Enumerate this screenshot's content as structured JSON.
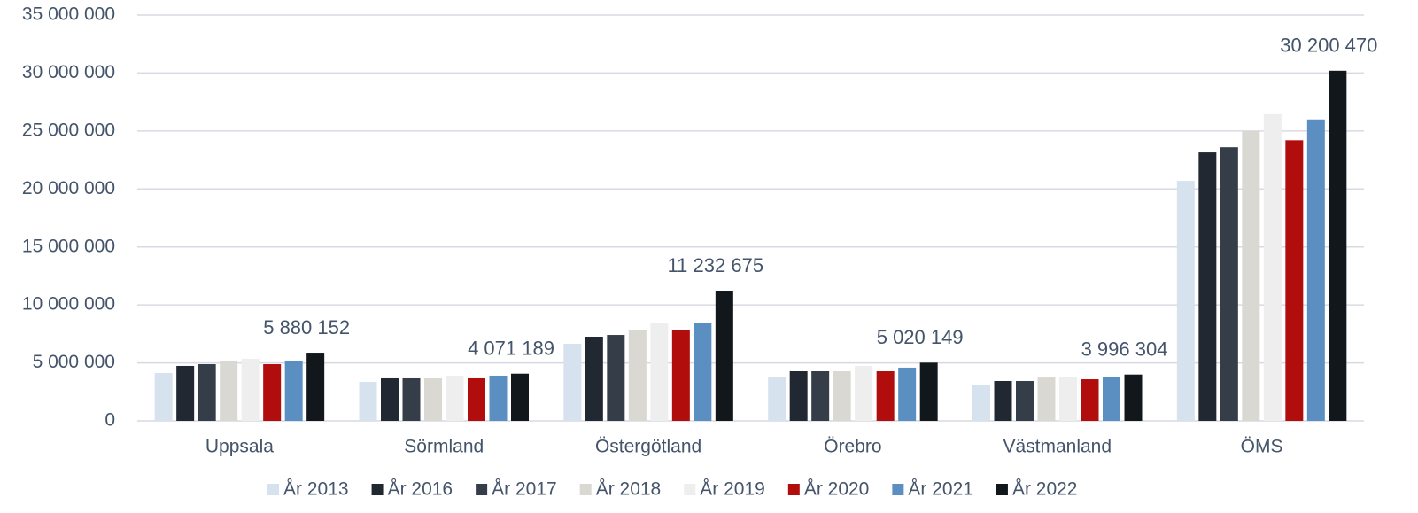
{
  "chart_data": {
    "type": "bar",
    "categories": [
      "Uppsala",
      "Sörmland",
      "Östergötland",
      "Örebro",
      "Västmanland",
      "ÖMS"
    ],
    "series": [
      {
        "name": "År 2013",
        "color": "#d6e3ef",
        "values": [
          4130000,
          3360000,
          6650000,
          3820000,
          3130000,
          20700000
        ]
      },
      {
        "name": "År 2016",
        "color": "#222831",
        "values": [
          4740000,
          3670000,
          7260000,
          4280000,
          3440000,
          23150000
        ]
      },
      {
        "name": "År 2017",
        "color": "#353e48",
        "values": [
          4890000,
          3670000,
          7410000,
          4280000,
          3440000,
          23600000
        ]
      },
      {
        "name": "År 2018",
        "color": "#d9d8d3",
        "values": [
          5200000,
          3670000,
          7870000,
          4280000,
          3740000,
          25000000
        ]
      },
      {
        "name": "År 2019",
        "color": "#eeeeee",
        "values": [
          5350000,
          3900000,
          8480000,
          4740000,
          3820000,
          26450000
        ]
      },
      {
        "name": "År 2020",
        "color": "#b10d0d",
        "values": [
          4890000,
          3670000,
          7870000,
          4280000,
          3590000,
          24200000
        ]
      },
      {
        "name": "År 2021",
        "color": "#5b8fc2",
        "values": [
          5200000,
          3900000,
          8480000,
          4590000,
          3820000,
          26000000
        ]
      },
      {
        "name": "År 2022",
        "color": "#12171c",
        "values": [
          5880152,
          4071189,
          11232675,
          5020149,
          3996304,
          30200470
        ],
        "value_labels": [
          "5 880 152",
          "4 071 189",
          "11 232 675",
          "5 020 149",
          "3 996 304",
          "30 200 470"
        ]
      }
    ],
    "ylim": [
      0,
      35000000
    ],
    "yticks": [
      0,
      {
        "value": 5000000,
        "label": "5 000 000"
      },
      {
        "value": 10000000,
        "label": "10 000 000"
      },
      {
        "value": 15000000,
        "label": "15 000 000"
      },
      {
        "value": 20000000,
        "label": "20 000 000"
      },
      {
        "value": 25000000,
        "label": "25 000 000"
      },
      {
        "value": 30000000,
        "label": "30 000 000"
      },
      {
        "value": 35000000,
        "label": "35 000 000"
      }
    ],
    "grid": true,
    "legend": "bottom"
  }
}
